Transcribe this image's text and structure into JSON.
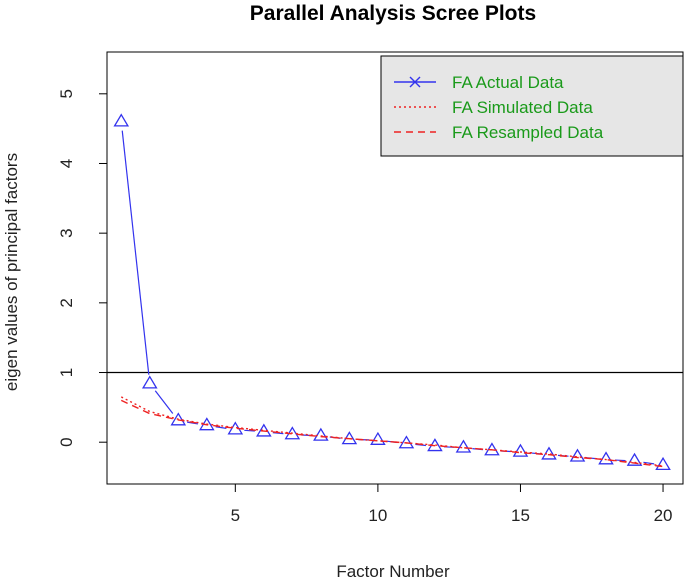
{
  "chart_data": {
    "type": "line",
    "title": "Parallel Analysis Scree Plots",
    "xlabel": "Factor Number",
    "ylabel": "eigen values of principal factors",
    "xlim": [
      0.5,
      20.7
    ],
    "ylim": [
      -0.6,
      5.6
    ],
    "xticks": [
      5,
      10,
      15,
      20
    ],
    "yticks": [
      0,
      1,
      2,
      3,
      4,
      5
    ],
    "reference_line": {
      "y": 1,
      "color": "#000000"
    },
    "legend": {
      "placement": "top-right",
      "background": "#e6e6e6",
      "entries": [
        {
          "label": "FA  Actual Data",
          "color": "#3333ee",
          "style": "solid",
          "marker": "x"
        },
        {
          "label": "FA  Simulated Data",
          "color": "#ee2222",
          "style": "dotted"
        },
        {
          "label": "FA  Resampled Data",
          "color": "#ee2222",
          "style": "dashed"
        }
      ]
    },
    "x": [
      1,
      2,
      3,
      4,
      5,
      6,
      7,
      8,
      9,
      10,
      11,
      12,
      13,
      14,
      15,
      16,
      17,
      18,
      19,
      20
    ],
    "series": [
      {
        "name": "FA  Actual Data",
        "color": "#3333ee",
        "line": "solid",
        "marker": "triangle",
        "values": [
          4.6,
          0.84,
          0.31,
          0.24,
          0.18,
          0.15,
          0.11,
          0.09,
          0.04,
          0.03,
          -0.02,
          -0.06,
          -0.08,
          -0.12,
          -0.14,
          -0.18,
          -0.21,
          -0.25,
          -0.27,
          -0.33
        ]
      },
      {
        "name": "FA  Simulated Data",
        "color": "#ee2222",
        "line": "dotted",
        "values": [
          0.65,
          0.44,
          0.33,
          0.26,
          0.21,
          0.17,
          0.13,
          0.09,
          0.05,
          0.02,
          -0.01,
          -0.04,
          -0.08,
          -0.11,
          -0.14,
          -0.17,
          -0.21,
          -0.25,
          -0.29,
          -0.34
        ]
      },
      {
        "name": "FA  Resampled Data",
        "color": "#ee2222",
        "line": "dashed",
        "values": [
          0.6,
          0.41,
          0.32,
          0.25,
          0.2,
          0.16,
          0.12,
          0.08,
          0.05,
          0.02,
          -0.01,
          -0.05,
          -0.08,
          -0.11,
          -0.15,
          -0.18,
          -0.22,
          -0.25,
          -0.3,
          -0.35
        ]
      }
    ]
  }
}
